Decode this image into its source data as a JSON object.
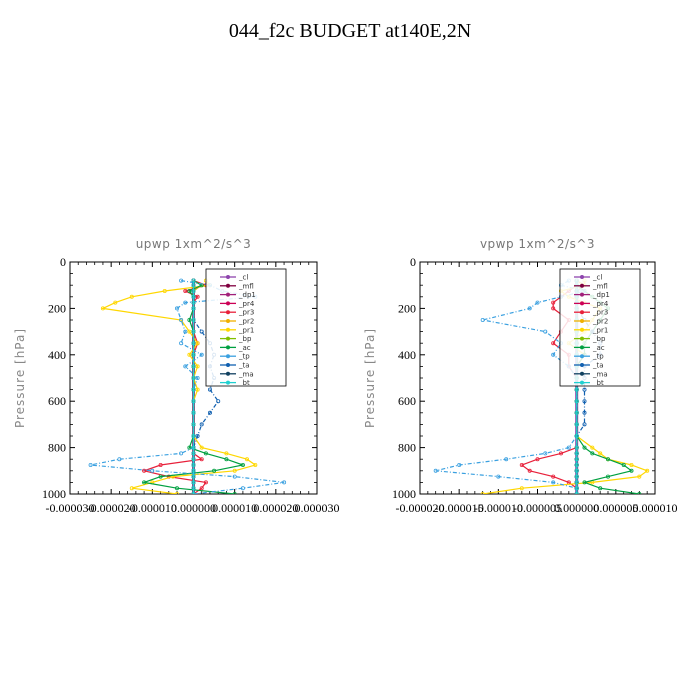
{
  "figure": {
    "title": "044_f2c  BUDGET at140E,2N"
  },
  "chart_data": [
    {
      "type": "line",
      "title": "upwp   1xm^2/s^3",
      "ylabel": "Pressure [hPa]",
      "xlabel": "",
      "ylim": [
        1000,
        0
      ],
      "xlim": [
        -3e-05,
        3e-05
      ],
      "y_ticks": [
        "0",
        "200",
        "400",
        "600",
        "800",
        "1000"
      ],
      "x_ticks": [
        "-0.000030",
        "-0.000020",
        "-0.000010",
        "0.000000",
        "0.000010",
        "0.000020",
        "0.000030"
      ],
      "legend": "top-right",
      "pressure": [
        80,
        100,
        125,
        150,
        175,
        200,
        250,
        300,
        350,
        400,
        450,
        500,
        550,
        600,
        650,
        700,
        750,
        800,
        825,
        850,
        875,
        900,
        925,
        950,
        975,
        1000
      ],
      "series": [
        {
          "name": "_cl",
          "color": "#8e44ad",
          "values": [
            0,
            0,
            0,
            0,
            0,
            0,
            0,
            0,
            0,
            0,
            0,
            0,
            0,
            0,
            0,
            0,
            0,
            0,
            0,
            0,
            0,
            0,
            0,
            0,
            0,
            0
          ]
        },
        {
          "name": "_mfl",
          "color": "#800040",
          "values": [
            0,
            0,
            0,
            0,
            0,
            0,
            0,
            0,
            0,
            0,
            0,
            0,
            0,
            0,
            0,
            0,
            0,
            0,
            0,
            0,
            0,
            0,
            0,
            0,
            0,
            0
          ]
        },
        {
          "name": "_dp1",
          "color": "#a0207a",
          "values": [
            0,
            0,
            0,
            0,
            0,
            0,
            0,
            0,
            0,
            0,
            0,
            0,
            0,
            0,
            0,
            0,
            0,
            0,
            0,
            0,
            0,
            0,
            0,
            0,
            0,
            0
          ]
        },
        {
          "name": "_pr4",
          "color": "#cc0055",
          "values": [
            0,
            0,
            0,
            0,
            0,
            0,
            0,
            0,
            0,
            0,
            0,
            0,
            0,
            0,
            0,
            0,
            0,
            0,
            0,
            0,
            0,
            0,
            0,
            0,
            0,
            0
          ]
        },
        {
          "name": "_pr3",
          "color": "#e8203a",
          "values": [
            0,
            3e-06,
            -2e-06,
            1e-06,
            0,
            0,
            0,
            0,
            1e-06,
            0,
            0,
            0,
            0,
            0,
            0,
            0,
            0,
            0,
            0,
            2e-06,
            -8e-06,
            -1.2e-05,
            -6e-06,
            3e-06,
            2e-06,
            0
          ]
        },
        {
          "name": "_pr2",
          "color": "#f0b000",
          "values": [
            0,
            2e-06,
            0,
            0,
            0,
            0,
            0,
            0,
            0,
            0,
            0,
            0,
            0,
            0,
            0,
            0,
            0,
            0,
            0,
            0,
            0,
            0,
            0,
            0,
            0,
            0
          ]
        },
        {
          "name": "_pr1",
          "color": "#ffd700",
          "values": [
            3e-06,
            4e-06,
            -7e-06,
            -1.5e-05,
            -1.9e-05,
            -2.2e-05,
            -3e-06,
            -1e-06,
            1e-06,
            -1e-06,
            1e-06,
            0,
            1e-06,
            0,
            0,
            0,
            0,
            2e-06,
            8e-06,
            1.3e-05,
            1.5e-05,
            1e-05,
            -5e-06,
            -1e-05,
            -1.5e-05,
            -4e-06
          ]
        },
        {
          "name": "_bp",
          "color": "#80c000",
          "values": [
            0,
            0,
            0,
            0,
            0,
            0,
            0,
            0,
            0,
            0,
            0,
            0,
            0,
            0,
            0,
            0,
            0,
            0,
            0,
            0,
            0,
            0,
            0,
            0,
            0,
            0
          ]
        },
        {
          "name": "_ac",
          "color": "#00a040",
          "values": [
            0,
            2e-06,
            -1e-06,
            0,
            0,
            0,
            -1e-06,
            0,
            0,
            0,
            0,
            0,
            0,
            0,
            0,
            0,
            0,
            -1e-06,
            3e-06,
            8e-06,
            1.2e-05,
            5e-06,
            -8e-06,
            -1.2e-05,
            -4e-06,
            1e-05
          ]
        },
        {
          "name": "_tp",
          "color": "#3aa0e0",
          "values": [
            -3e-06,
            4e-06,
            7e-06,
            1.5e-05,
            -2e-06,
            -4e-06,
            -3e-06,
            -2e-06,
            -3e-06,
            2e-06,
            -2e-06,
            1e-06,
            0,
            0,
            0,
            0,
            0,
            0,
            -3e-06,
            -1.8e-05,
            -2.5e-05,
            -1e-05,
            1e-05,
            2.2e-05,
            1.2e-05,
            0
          ]
        },
        {
          "name": "_ta",
          "color": "#1060b0",
          "values": [
            0,
            0,
            0,
            0,
            0,
            0,
            0,
            2e-06,
            4e-06,
            5e-06,
            4e-06,
            5e-06,
            4e-06,
            6e-06,
            4e-06,
            2e-06,
            1e-06,
            0,
            0,
            0,
            0,
            0,
            0,
            0,
            0,
            0
          ]
        },
        {
          "name": "_ma",
          "color": "#104060",
          "values": [
            0,
            0,
            0,
            0,
            0,
            0,
            0,
            0,
            0,
            0,
            0,
            0,
            0,
            0,
            0,
            0,
            0,
            0,
            0,
            0,
            0,
            0,
            0,
            0,
            0,
            0
          ]
        },
        {
          "name": "_bt",
          "color": "#20d0d0",
          "values": [
            0,
            0,
            0,
            0,
            0,
            0,
            0,
            0,
            0,
            0,
            0,
            0,
            0,
            0,
            0,
            0,
            0,
            0,
            0,
            0,
            0,
            0,
            0,
            0,
            0,
            0
          ]
        }
      ]
    },
    {
      "type": "line",
      "title": "vpwp   1xm^2/s^3",
      "ylabel": "Pressure [hPa]",
      "xlabel": "",
      "ylim": [
        1000,
        0
      ],
      "xlim": [
        -2e-05,
        1e-05
      ],
      "y_ticks": [
        "0",
        "200",
        "400",
        "600",
        "800",
        "1000"
      ],
      "x_ticks": [
        "-0.000020",
        "-0.000015",
        "-0.000010",
        "-0.000005",
        "0.000000",
        "0.000005",
        "0.000010"
      ],
      "legend": "top-right",
      "pressure": [
        80,
        100,
        125,
        150,
        175,
        200,
        250,
        300,
        350,
        400,
        450,
        500,
        550,
        600,
        650,
        700,
        750,
        800,
        825,
        850,
        875,
        900,
        925,
        950,
        975,
        1000
      ],
      "series": [
        {
          "name": "_cl",
          "color": "#8e44ad",
          "values": [
            0,
            0,
            0,
            0,
            0,
            0,
            0,
            0,
            0,
            0,
            0,
            0,
            0,
            0,
            0,
            0,
            0,
            0,
            0,
            0,
            0,
            0,
            0,
            0,
            0,
            0
          ]
        },
        {
          "name": "_mfl",
          "color": "#800040",
          "values": [
            0,
            0,
            0,
            0,
            0,
            0,
            0,
            0,
            0,
            0,
            0,
            0,
            0,
            0,
            0,
            0,
            0,
            0,
            0,
            0,
            0,
            0,
            0,
            0,
            0,
            0
          ]
        },
        {
          "name": "_dp1",
          "color": "#a0207a",
          "values": [
            0,
            0,
            0,
            0,
            0,
            0,
            0,
            0,
            0,
            0,
            0,
            0,
            0,
            0,
            0,
            0,
            0,
            0,
            0,
            0,
            0,
            0,
            0,
            0,
            0,
            0
          ]
        },
        {
          "name": "_pr4",
          "color": "#cc0055",
          "values": [
            0,
            0,
            0,
            0,
            0,
            0,
            0,
            0,
            0,
            0,
            0,
            0,
            0,
            0,
            0,
            0,
            0,
            0,
            0,
            0,
            0,
            0,
            0,
            0,
            0,
            0
          ]
        },
        {
          "name": "_pr3",
          "color": "#e8203a",
          "values": [
            0,
            0,
            -1e-06,
            -2e-06,
            -3e-06,
            -3e-06,
            -1e-06,
            -2e-06,
            -3e-06,
            -1e-06,
            -1e-06,
            0,
            0,
            0,
            0,
            0,
            0,
            0,
            -2e-06,
            -5e-06,
            -7e-06,
            -6e-06,
            -3e-06,
            -1e-06,
            0,
            0
          ]
        },
        {
          "name": "_pr2",
          "color": "#f0b000",
          "values": [
            0,
            1e-06,
            0,
            0,
            0,
            0,
            0,
            0,
            0,
            0,
            0,
            0,
            0,
            0,
            0,
            0,
            0,
            0,
            0,
            0,
            0,
            0,
            0,
            0,
            0,
            0
          ]
        },
        {
          "name": "_pr1",
          "color": "#ffd700",
          "values": [
            1e-06,
            1e-06,
            -2e-06,
            -1e-06,
            1e-06,
            3e-06,
            2e-06,
            1e-06,
            -1e-06,
            1e-06,
            0,
            0,
            0,
            0,
            0,
            0,
            0,
            2e-06,
            3e-06,
            4e-06,
            7e-06,
            9e-06,
            8e-06,
            2e-06,
            -7e-06,
            -1.2e-05
          ]
        },
        {
          "name": "_bp",
          "color": "#80c000",
          "values": [
            0,
            0,
            0,
            0,
            0,
            0,
            0,
            0,
            0,
            0,
            0,
            0,
            0,
            0,
            0,
            0,
            0,
            0,
            0,
            0,
            0,
            0,
            0,
            0,
            0,
            0
          ]
        },
        {
          "name": "_ac",
          "color": "#00a040",
          "values": [
            0,
            0,
            1e-06,
            2e-06,
            3e-06,
            4e-06,
            3e-06,
            2e-06,
            1e-06,
            1e-06,
            0,
            0,
            0,
            0,
            0,
            0,
            0,
            1e-06,
            2e-06,
            4e-06,
            6e-06,
            7e-06,
            4e-06,
            1e-06,
            3e-06,
            8e-06
          ]
        },
        {
          "name": "_tp",
          "color": "#3aa0e0",
          "values": [
            -1e-06,
            -2e-06,
            1e-06,
            -2e-06,
            -5e-06,
            -6e-06,
            -1.2e-05,
            -4e-06,
            -2e-06,
            -3e-06,
            -1e-06,
            0,
            0,
            0,
            0,
            0,
            0,
            -1e-06,
            -4e-06,
            -9e-06,
            -1.5e-05,
            -1.8e-05,
            -1e-05,
            -3e-06,
            0,
            0
          ]
        },
        {
          "name": "_ta",
          "color": "#1060b0",
          "values": [
            0,
            0,
            0,
            0,
            0,
            0,
            1e-06,
            2e-06,
            3e-06,
            3e-06,
            1e-06,
            1e-06,
            1e-06,
            1e-06,
            1e-06,
            1e-06,
            0,
            0,
            0,
            0,
            0,
            0,
            0,
            0,
            0,
            0
          ]
        },
        {
          "name": "_ma",
          "color": "#104060",
          "values": [
            0,
            0,
            0,
            0,
            0,
            0,
            0,
            0,
            0,
            0,
            0,
            0,
            0,
            0,
            0,
            0,
            0,
            0,
            0,
            0,
            0,
            0,
            0,
            0,
            0,
            0
          ]
        },
        {
          "name": "_bt",
          "color": "#20d0d0",
          "values": [
            0,
            0,
            0,
            0,
            0,
            0,
            0,
            0,
            0,
            0,
            0,
            0,
            0,
            0,
            0,
            0,
            0,
            0,
            0,
            0,
            0,
            0,
            0,
            0,
            0,
            0
          ]
        }
      ]
    }
  ]
}
